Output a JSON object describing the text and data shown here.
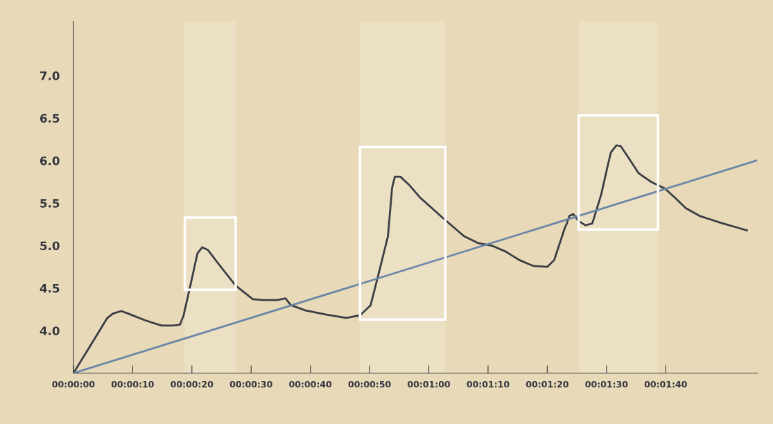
{
  "chart_data": {
    "type": "line",
    "x": [
      0,
      2.57,
      5.73,
      6.67,
      8.07,
      9.24,
      12.16,
      14.85,
      16.84,
      18.0,
      18.6,
      19.77,
      20.94,
      21.75,
      22.69,
      24.44,
      27.37,
      30.29,
      32.05,
      34.39,
      35.8,
      36.7,
      39.06,
      42.57,
      46.08,
      48.42,
      50.18,
      51.35,
      53.1,
      53.8,
      54.27,
      55.2,
      56.6,
      58.6,
      62.46,
      65.96,
      68.3,
      70.64,
      72.98,
      75.3,
      77.66,
      80.0,
      81.17,
      82.92,
      83.3,
      83.74,
      84.4,
      85.26,
      86.43,
      87.6,
      89.1,
      90.3,
      90.76,
      91.7,
      92.4,
      93.57,
      95.44,
      97.54,
      99.88,
      101.6,
      103.4,
      105.7,
      109.2,
      112.2,
      113.7
    ],
    "series": [
      {
        "color": "#3a3d44",
        "values": [
          3.5,
          3.79,
          4.15,
          4.2,
          4.23,
          4.2,
          4.12,
          4.06,
          4.06,
          4.07,
          4.18,
          4.54,
          4.91,
          4.98,
          4.95,
          4.79,
          4.53,
          4.37,
          4.36,
          4.36,
          4.38,
          4.3,
          4.24,
          4.19,
          4.15,
          4.18,
          4.3,
          4.62,
          5.11,
          5.68,
          5.81,
          5.81,
          5.72,
          5.56,
          5.32,
          5.11,
          5.03,
          5.0,
          4.93,
          4.83,
          4.76,
          4.75,
          4.83,
          5.2,
          5.26,
          5.35,
          5.37,
          5.29,
          5.24,
          5.26,
          5.6,
          5.97,
          6.1,
          6.18,
          6.17,
          6.05,
          5.85,
          5.75,
          5.67,
          5.56,
          5.44,
          5.35,
          5.27,
          5.21,
          5.18
        ]
      },
      {
        "type": "line",
        "color": "#6b86a8",
        "x": [
          0,
          115.3
        ],
        "values": [
          3.5,
          6.0
        ]
      }
    ],
    "xlim": [
      0,
      115.5
    ],
    "ylim": [
      3.5,
      7.64
    ],
    "xticks": [
      {
        "value": 0,
        "label": "00:00:00"
      },
      {
        "value": 10,
        "label": "00:00:10"
      },
      {
        "value": 20,
        "label": "00:00:20"
      },
      {
        "value": 30,
        "label": "00:00:30"
      },
      {
        "value": 40,
        "label": "00:00:40"
      },
      {
        "value": 50,
        "label": "00:00:50"
      },
      {
        "value": 60,
        "label": "00:01:00"
      },
      {
        "value": 70,
        "label": "00:01:10"
      },
      {
        "value": 80,
        "label": "00:01:20"
      },
      {
        "value": 90,
        "label": "00:01:30"
      },
      {
        "value": 100,
        "label": "00:01:40"
      }
    ],
    "yticks": [
      {
        "value": 4,
        "label": "4.0"
      },
      {
        "value": 4.5,
        "label": "4.5"
      },
      {
        "value": 5,
        "label": "5.0"
      },
      {
        "value": 5.5,
        "label": "5.5"
      },
      {
        "value": 6,
        "label": "6.0"
      },
      {
        "value": 6.5,
        "label": "6.5"
      },
      {
        "value": 7,
        "label": "7.0"
      }
    ],
    "bands": [
      {
        "axis": "x",
        "from": 18.8,
        "to": 27.4,
        "color": "#ffffff"
      },
      {
        "axis": "x",
        "from": 48.4,
        "to": 62.8,
        "color": "#ffffff"
      },
      {
        "axis": "x",
        "from": 85.3,
        "to": 98.7,
        "color": "#ffffff"
      }
    ],
    "grid": false,
    "legend": false,
    "marker": "none",
    "line_style": "solid"
  }
}
